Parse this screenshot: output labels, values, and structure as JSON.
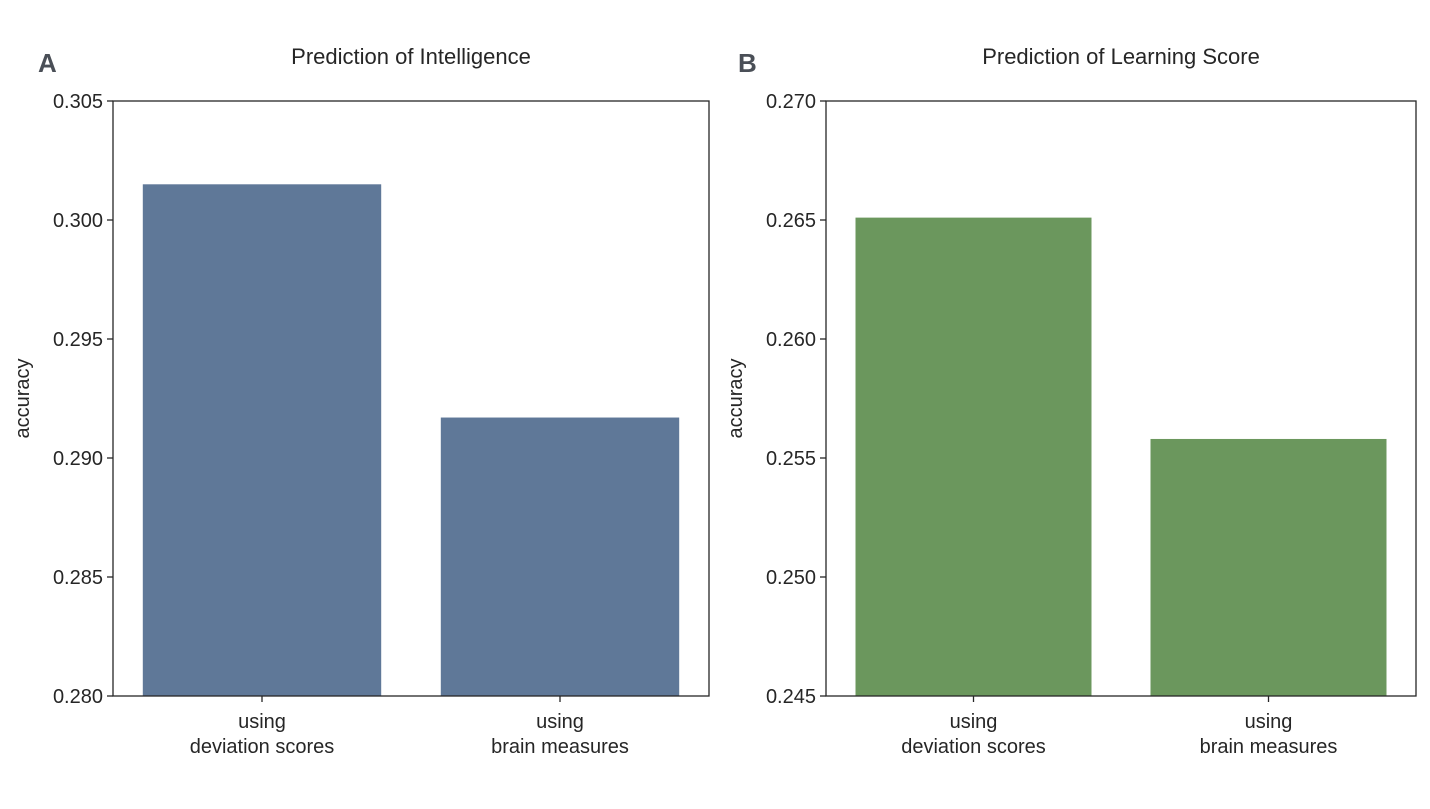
{
  "chart_data": [
    {
      "type": "bar",
      "panel_label": "A",
      "title": "Prediction of Intelligence",
      "xlabel": "",
      "ylabel": "accuracy",
      "categories": [
        [
          "using",
          "deviation scores"
        ],
        [
          "using",
          "brain measures"
        ]
      ],
      "values": [
        0.3015,
        0.2917
      ],
      "ylim": [
        0.28,
        0.305
      ],
      "yticks": [
        "0.280",
        "0.285",
        "0.290",
        "0.295",
        "0.300",
        "0.305"
      ],
      "color": "#5f7898",
      "grid": false
    },
    {
      "type": "bar",
      "panel_label": "B",
      "title": "Prediction of Learning Score",
      "xlabel": "",
      "ylabel": "accuracy",
      "categories": [
        [
          "using",
          "deviation scores"
        ],
        [
          "using",
          "brain measures"
        ]
      ],
      "values": [
        0.2651,
        0.2558
      ],
      "ylim": [
        0.245,
        0.27
      ],
      "yticks": [
        "0.245",
        "0.250",
        "0.255",
        "0.260",
        "0.265",
        "0.270"
      ],
      "color": "#6b975d",
      "grid": false
    }
  ]
}
